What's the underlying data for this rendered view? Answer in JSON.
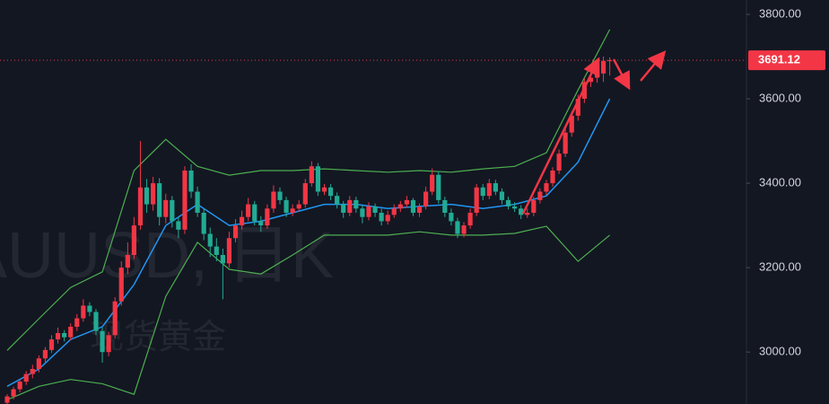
{
  "chart_data": {
    "type": "candlestick",
    "watermark": {
      "symbol": "AUUSD, 日K",
      "name": "现货黄金"
    },
    "up_color": "#f23645",
    "down_color": "#22ab94",
    "ylim": [
      2877,
      3834
    ],
    "yticks": [
      {
        "value": 3000,
        "label": "3000.00"
      },
      {
        "value": 3200,
        "label": "3200.00"
      },
      {
        "value": 3400,
        "label": "3400.00"
      },
      {
        "value": 3600,
        "label": "3600.00"
      },
      {
        "value": 3800,
        "label": "3800.00"
      }
    ],
    "last_price": 3691.12,
    "ohlc": [
      [
        2880,
        2900,
        2872,
        2895
      ],
      [
        2895,
        2918,
        2888,
        2912
      ],
      [
        2912,
        2936,
        2905,
        2930
      ],
      [
        2930,
        2955,
        2922,
        2948
      ],
      [
        2948,
        2970,
        2938,
        2960
      ],
      [
        2960,
        2992,
        2952,
        2985
      ],
      [
        2985,
        3012,
        2975,
        3005
      ],
      [
        3005,
        3040,
        2998,
        3030
      ],
      [
        3030,
        3058,
        3020,
        3045
      ],
      [
        3045,
        3052,
        3025,
        3035
      ],
      [
        3035,
        3068,
        3028,
        3060
      ],
      [
        3060,
        3090,
        3050,
        3080
      ],
      [
        3080,
        3125,
        3072,
        3110
      ],
      [
        3110,
        3118,
        3085,
        3095
      ],
      [
        3095,
        3102,
        3040,
        3050
      ],
      [
        3050,
        3058,
        2975,
        3000
      ],
      [
        3000,
        3048,
        2990,
        3040
      ],
      [
        3040,
        3130,
        3032,
        3120
      ],
      [
        3120,
        3215,
        3110,
        3200
      ],
      [
        3200,
        3260,
        3185,
        3230
      ],
      [
        3230,
        3320,
        3220,
        3300
      ],
      [
        3300,
        3500,
        3290,
        3390
      ],
      [
        3390,
        3410,
        3330,
        3350
      ],
      [
        3350,
        3415,
        3335,
        3400
      ],
      [
        3400,
        3412,
        3300,
        3320
      ],
      [
        3320,
        3375,
        3305,
        3360
      ],
      [
        3360,
        3370,
        3295,
        3310
      ],
      [
        3310,
        3320,
        3270,
        3290
      ],
      [
        3290,
        3440,
        3280,
        3430
      ],
      [
        3430,
        3445,
        3365,
        3380
      ],
      [
        3380,
        3392,
        3320,
        3330
      ],
      [
        3330,
        3340,
        3265,
        3280
      ],
      [
        3280,
        3295,
        3225,
        3250
      ],
      [
        3250,
        3270,
        3215,
        3230
      ],
      [
        3230,
        3245,
        3125,
        3210
      ],
      [
        3210,
        3285,
        3200,
        3270
      ],
      [
        3270,
        3315,
        3260,
        3300
      ],
      [
        3300,
        3335,
        3290,
        3320
      ],
      [
        3320,
        3365,
        3310,
        3350
      ],
      [
        3350,
        3358,
        3300,
        3310
      ],
      [
        3310,
        3322,
        3285,
        3300
      ],
      [
        3300,
        3350,
        3292,
        3340
      ],
      [
        3340,
        3395,
        3330,
        3380
      ],
      [
        3380,
        3390,
        3350,
        3360
      ],
      [
        3360,
        3368,
        3320,
        3330
      ],
      [
        3330,
        3350,
        3322,
        3340
      ],
      [
        3340,
        3360,
        3332,
        3350
      ],
      [
        3350,
        3410,
        3342,
        3400
      ],
      [
        3400,
        3452,
        3392,
        3440
      ],
      [
        3440,
        3448,
        3370,
        3380
      ],
      [
        3380,
        3398,
        3372,
        3390
      ],
      [
        3390,
        3398,
        3360,
        3370
      ],
      [
        3370,
        3378,
        3340,
        3350
      ],
      [
        3350,
        3358,
        3318,
        3330
      ],
      [
        3330,
        3370,
        3322,
        3360
      ],
      [
        3360,
        3368,
        3330,
        3340
      ],
      [
        3340,
        3348,
        3305,
        3320
      ],
      [
        3320,
        3355,
        3312,
        3345
      ],
      [
        3345,
        3352,
        3320,
        3330
      ],
      [
        3330,
        3340,
        3300,
        3310
      ],
      [
        3310,
        3335,
        3302,
        3325
      ],
      [
        3325,
        3350,
        3318,
        3340
      ],
      [
        3340,
        3358,
        3332,
        3350
      ],
      [
        3350,
        3370,
        3342,
        3360
      ],
      [
        3360,
        3365,
        3322,
        3330
      ],
      [
        3330,
        3352,
        3320,
        3345
      ],
      [
        3345,
        3392,
        3338,
        3380
      ],
      [
        3380,
        3435,
        3372,
        3420
      ],
      [
        3420,
        3428,
        3352,
        3360
      ],
      [
        3360,
        3368,
        3320,
        3330
      ],
      [
        3330,
        3340,
        3300,
        3310
      ],
      [
        3310,
        3318,
        3270,
        3280
      ],
      [
        3280,
        3308,
        3272,
        3300
      ],
      [
        3300,
        3340,
        3292,
        3330
      ],
      [
        3330,
        3398,
        3322,
        3390
      ],
      [
        3390,
        3398,
        3360,
        3370
      ],
      [
        3370,
        3410,
        3362,
        3400
      ],
      [
        3400,
        3408,
        3372,
        3380
      ],
      [
        3380,
        3388,
        3350,
        3360
      ],
      [
        3360,
        3368,
        3338,
        3345
      ],
      [
        3345,
        3355,
        3332,
        3340
      ],
      [
        3340,
        3348,
        3315,
        3325
      ],
      [
        3325,
        3340,
        3318,
        3330
      ],
      [
        3330,
        3368,
        3322,
        3360
      ],
      [
        3360,
        3388,
        3352,
        3380
      ],
      [
        3380,
        3408,
        3372,
        3400
      ],
      [
        3400,
        3438,
        3392,
        3430
      ],
      [
        3430,
        3480,
        3422,
        3470
      ],
      [
        3470,
        3530,
        3462,
        3520
      ],
      [
        3520,
        3570,
        3510,
        3560
      ],
      [
        3560,
        3610,
        3548,
        3600
      ],
      [
        3600,
        3648,
        3590,
        3640
      ],
      [
        3640,
        3662,
        3628,
        3650
      ],
      [
        3650,
        3672,
        3638,
        3660
      ],
      [
        3660,
        3700,
        3640,
        3690
      ],
      [
        3690,
        3698,
        3655,
        3691.12
      ]
    ],
    "bands": {
      "x": [
        0,
        5,
        10,
        15,
        20,
        25,
        30,
        35,
        40,
        45,
        50,
        55,
        60,
        65,
        70,
        75,
        80,
        85,
        90,
        95
      ],
      "upper": [
        3004,
        3079,
        3153,
        3190,
        3430,
        3504,
        3440,
        3419,
        3430,
        3430,
        3434,
        3430,
        3426,
        3430,
        3426,
        3434,
        3440,
        3472,
        3621,
        3764
      ],
      "middle": [
        2919,
        2960,
        3030,
        3060,
        3160,
        3300,
        3350,
        3300,
        3310,
        3330,
        3350,
        3350,
        3340,
        3345,
        3350,
        3340,
        3350,
        3370,
        3450,
        3600
      ],
      "lower": [
        2887,
        2919,
        2935,
        2925,
        2900,
        3132,
        3260,
        3196,
        3185,
        3230,
        3277,
        3277,
        3277,
        3285,
        3277,
        3277,
        3281,
        3298,
        3215,
        3277
      ],
      "upper_color": "#4caf50",
      "middle_color": "#2196f3",
      "lower_color": "#4caf50"
    }
  }
}
